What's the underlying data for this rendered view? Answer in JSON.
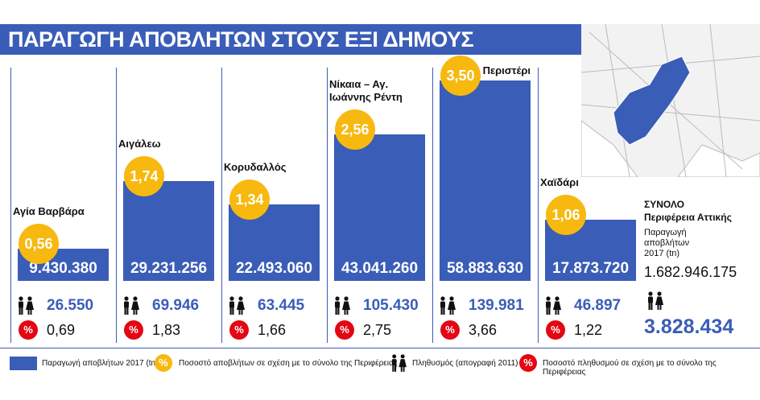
{
  "chart_data": {
    "type": "bar",
    "title": "ΠΑΡΑΓΩΓΗ ΑΠΟΒΛΗΤΩΝ ΣΤΟΥΣ ΕΞΙ ΔΗΜΟΥΣ",
    "symbol": "%",
    "categories": [
      "Αγία Βαρβάρα",
      "Αιγάλεω",
      "Κορυδαλλός",
      "Νίκαια – Αγ. Ιωάννης Ρέντη",
      "Περιστέρι",
      "Χαϊδάρι"
    ],
    "series": [
      {
        "name": "Παραγωγή αποβλήτων 2017 (tn)",
        "color": "#3a5db7",
        "values": [
          9430380,
          29231256,
          22493060,
          43041260,
          58883630,
          17873720
        ],
        "value_labels": [
          "9.430.380",
          "29.231.256",
          "22.493.060",
          "43.041.260",
          "58.883.630",
          "17.873.720"
        ]
      },
      {
        "name": "Ποσοστό αποβλήτων σε σχέση με το σύνολο της Περιφέρειας",
        "color": "#f7b90f",
        "values": [
          0.56,
          1.74,
          1.34,
          2.56,
          3.5,
          1.06
        ],
        "value_labels": [
          "0,56",
          "1,74",
          "1,34",
          "2,56",
          "3,50",
          "1,06"
        ]
      },
      {
        "name": "Πληθυσμός (απογραφή 2011)",
        "color": "#3a5db7",
        "values": [
          26550,
          69946,
          63445,
          105430,
          139981,
          46897
        ],
        "value_labels": [
          "26.550",
          "69.946",
          "63.445",
          "105.430",
          "139.981",
          "46.897"
        ]
      },
      {
        "name": "Ποσοστό πληθυσμού σε σχέση με το σύνολο της Περιφέρειας",
        "color": "#e30613",
        "values": [
          0.69,
          1.83,
          1.66,
          2.75,
          3.66,
          1.22
        ],
        "value_labels": [
          "0,69",
          "1,83",
          "1,66",
          "2,75",
          "3,66",
          "1,22"
        ]
      }
    ],
    "total": {
      "title": [
        "ΣΥΝΟΛΟ",
        "Περιφέρεια Αττικής"
      ],
      "waste": 1682946175,
      "waste_label": "1.682.946.175",
      "population": 3828434,
      "population_label": "3.828.434"
    }
  }
}
